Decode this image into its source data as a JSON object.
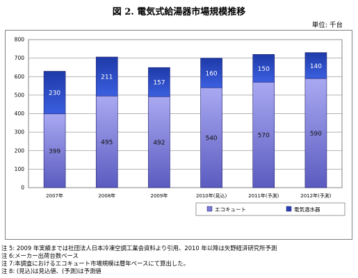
{
  "title": "図 2.  電気式給湯器市場規模推移",
  "unit_label": "単位: 千台",
  "chart_data": {
    "type": "bar",
    "stacked": true,
    "categories": [
      "2007年",
      "2008年",
      "2009年",
      "2010年(見込)",
      "2011年(予測)",
      "2012年(予測)"
    ],
    "series": [
      {
        "name": "エコキュート",
        "values": [
          399,
          495,
          492,
          540,
          570,
          590
        ],
        "color": "#7b7bd6"
      },
      {
        "name": "電気温水器",
        "values": [
          230,
          211,
          157,
          160,
          150,
          140
        ],
        "color": "#2a3fb0"
      }
    ],
    "ylim": [
      0,
      800
    ],
    "yticks": [
      0,
      100,
      200,
      300,
      400,
      500,
      600,
      700,
      800
    ],
    "grid": true,
    "legend_position": "bottom-right"
  },
  "notes": [
    "注 5: 2009 年実績までは社団法人日本冷凍空調工業会資料より引用、2010 年以降は矢野経済研究所予測",
    "注 6:メーカー出荷台数ベース",
    "注 7:本調査におけるエコキュート市場規模は暦年ベースにて算出した。",
    "注 8: (見込)は見込値、(予測)は予測値"
  ]
}
